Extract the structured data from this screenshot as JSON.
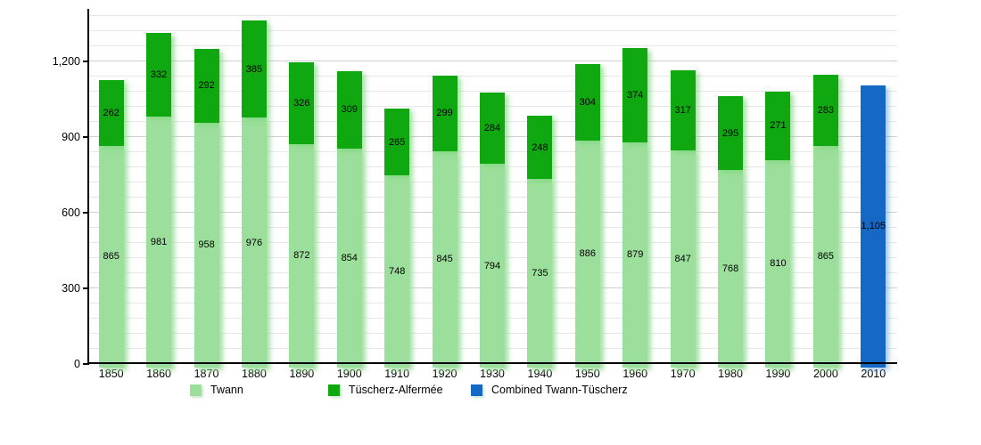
{
  "chart_data": {
    "type": "bar",
    "stacked": true,
    "title": "",
    "xlabel": "",
    "ylabel": "",
    "categories": [
      "1850",
      "1860",
      "1870",
      "1880",
      "1890",
      "1900",
      "1910",
      "1920",
      "1930",
      "1940",
      "1950",
      "1960",
      "1970",
      "1980",
      "1990",
      "2000",
      "2010"
    ],
    "series": [
      {
        "name": "Twann",
        "color": "#9CDF9C",
        "values": [
          865,
          981,
          958,
          976,
          872,
          854,
          748,
          845,
          794,
          735,
          886,
          879,
          847,
          768,
          810,
          865,
          null
        ]
      },
      {
        "name": "Tüscherz-Alfermée",
        "color": "#10A810",
        "values": [
          262,
          332,
          292,
          385,
          326,
          309,
          265,
          299,
          284,
          248,
          304,
          374,
          317,
          295,
          271,
          283,
          null
        ]
      },
      {
        "name": "Combined Twann-Tüscherz",
        "color": "#1568C4",
        "values": [
          null,
          null,
          null,
          null,
          null,
          null,
          null,
          null,
          null,
          null,
          null,
          null,
          null,
          null,
          null,
          null,
          1105
        ]
      }
    ],
    "y_ticks": [
      0,
      300,
      600,
      900,
      1200
    ],
    "ylim": [
      0,
      1408
    ],
    "grid_minor_step": 60,
    "grid": true,
    "legend_position": "bottom",
    "bar_value_labels": true,
    "value_label_example": "1,105"
  },
  "legend": {
    "item_x_positions": [
      213,
      368,
      528
    ]
  }
}
